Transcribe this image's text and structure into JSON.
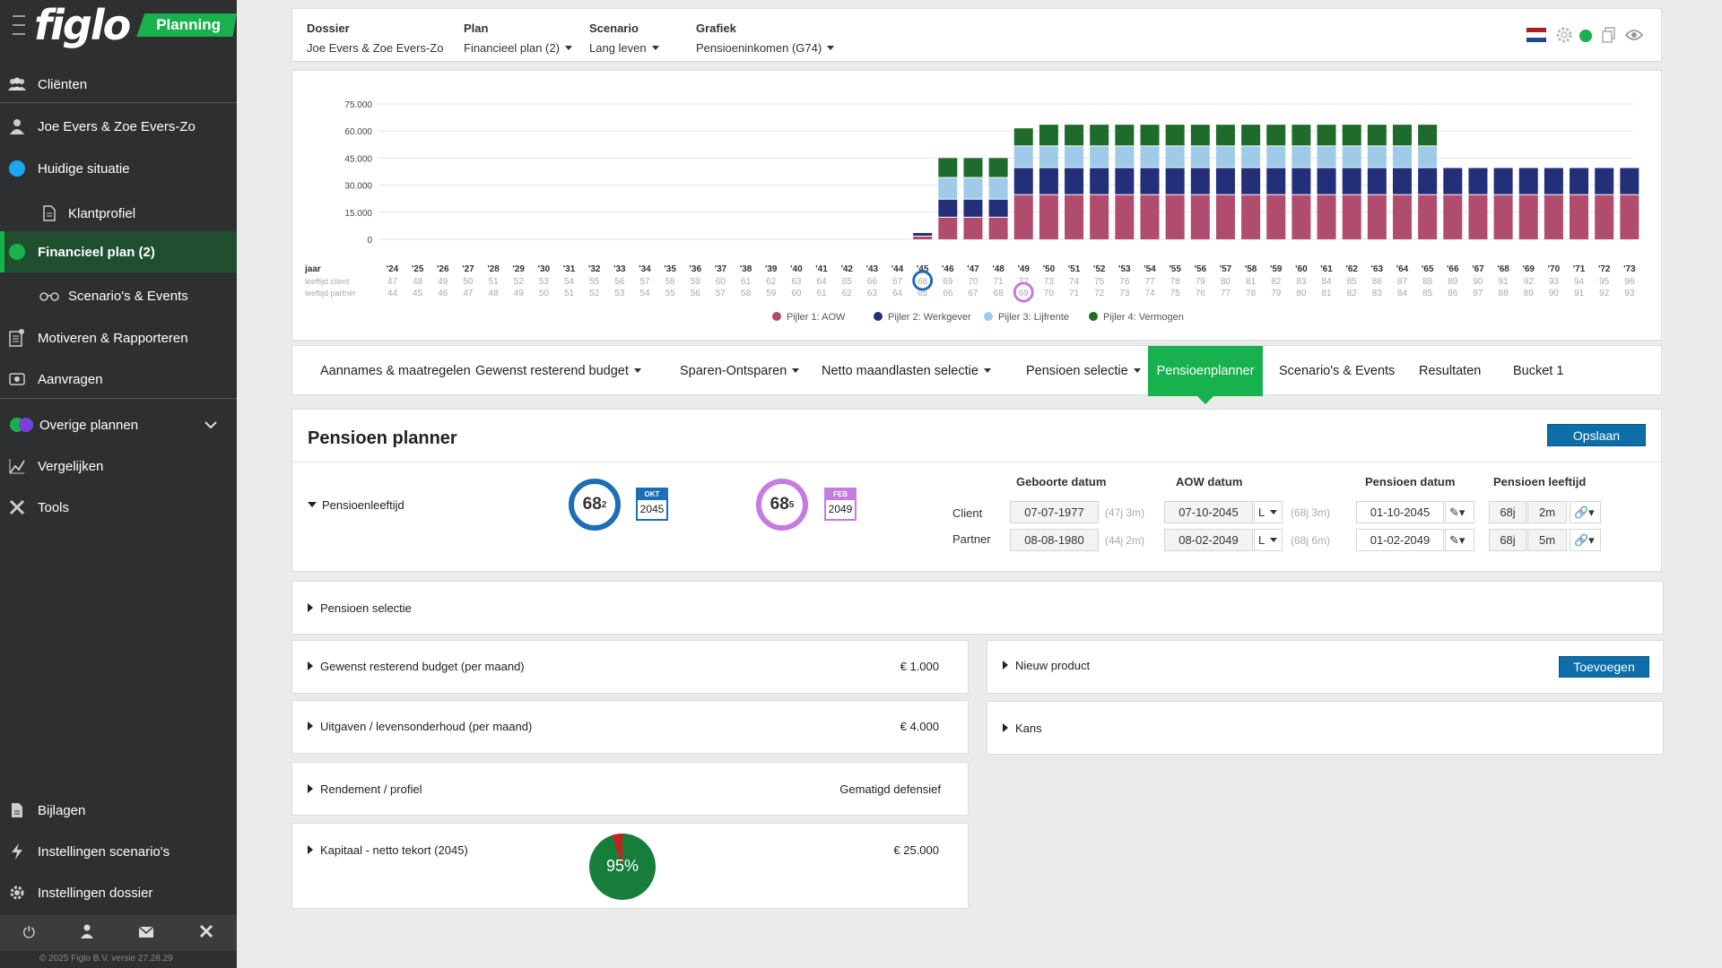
{
  "app": {
    "logo": "figlo",
    "badge": "Planning",
    "version": "© 2025 Figlo B.V. versie 27.28.29"
  },
  "sidebar": {
    "items": [
      {
        "label": "Cliënten",
        "icon": "users-icon"
      },
      {
        "label": "Joe Evers & Zoe Evers-Zo",
        "icon": "user-icon"
      },
      {
        "label": "Huidige situatie",
        "icon": "blue-dot-icon"
      },
      {
        "label": "Klantprofiel",
        "icon": "document-icon"
      },
      {
        "label": "Financieel plan (2)",
        "icon": "green-dot-icon"
      },
      {
        "label": "Scenario's & Events",
        "icon": "glasses-icon"
      },
      {
        "label": "Motiveren & Rapporteren",
        "icon": "report-icon"
      },
      {
        "label": "Aanvragen",
        "icon": "request-icon"
      },
      {
        "label": "Overige plannen",
        "icon": "multi-dot-icon"
      },
      {
        "label": "Vergelijken",
        "icon": "compare-icon"
      },
      {
        "label": "Tools",
        "icon": "tools-icon"
      },
      {
        "label": "Bijlagen",
        "icon": "attachment-icon"
      },
      {
        "label": "Instellingen scenario's",
        "icon": "lightning-icon"
      },
      {
        "label": "Instellingen dossier",
        "icon": "gear-icon"
      }
    ]
  },
  "topbar": {
    "dossier_label": "Dossier",
    "dossier_value": "Joe Evers & Zoe Evers-Zo",
    "plan_label": "Plan",
    "plan_value": "Financieel plan (2)",
    "scenario_label": "Scenario",
    "scenario_value": "Lang leven",
    "grafiek_label": "Grafiek",
    "grafiek_value": "Pensioeninkomen (G74)"
  },
  "chart_data": {
    "type": "bar",
    "stacked": true,
    "ylim": [
      0,
      75000
    ],
    "yticks": [
      "75.000",
      "60.000",
      "45.000",
      "30.000",
      "15.000",
      "0"
    ],
    "categories": [
      "'24",
      "'25",
      "'26",
      "'27",
      "'28",
      "'29",
      "'30",
      "'31",
      "'32",
      "'33",
      "'34",
      "'35",
      "'36",
      "'37",
      "'38",
      "'39",
      "'40",
      "'41",
      "'42",
      "'43",
      "'44",
      "'45",
      "'46",
      "'47",
      "'48",
      "'49",
      "'50",
      "'51",
      "'52",
      "'53",
      "'54",
      "'55",
      "'56",
      "'57",
      "'58",
      "'59",
      "'60",
      "'61",
      "'62",
      "'63",
      "'64",
      "'65",
      "'66",
      "'67",
      "'68",
      "'69",
      "'70",
      "'71",
      "'72",
      "'73"
    ],
    "row_labels": [
      "jaar",
      "leeftijd client",
      "leeftijd partner"
    ],
    "age_client": [
      47,
      48,
      49,
      50,
      51,
      52,
      53,
      54,
      55,
      56,
      57,
      58,
      59,
      60,
      61,
      62,
      63,
      64,
      65,
      66,
      67,
      68,
      69,
      70,
      71,
      72,
      73,
      74,
      75,
      76,
      77,
      78,
      79,
      80,
      81,
      82,
      83,
      84,
      85,
      86,
      87,
      88,
      89,
      90,
      91,
      92,
      93,
      94,
      95,
      96
    ],
    "age_partner": [
      44,
      45,
      46,
      47,
      48,
      49,
      50,
      51,
      52,
      53,
      54,
      55,
      56,
      57,
      58,
      59,
      60,
      61,
      62,
      63,
      64,
      65,
      66,
      67,
      68,
      69,
      70,
      71,
      72,
      73,
      74,
      75,
      76,
      77,
      78,
      79,
      80,
      81,
      82,
      83,
      84,
      85,
      86,
      87,
      88,
      89,
      90,
      91,
      92,
      93
    ],
    "highlight_client_index": 21,
    "highlight_partner_index": 25,
    "series": [
      {
        "name": "Pijler 1: AOW",
        "color": "#b04c6e",
        "values": [
          0,
          0,
          0,
          0,
          0,
          0,
          0,
          0,
          0,
          0,
          0,
          0,
          0,
          0,
          0,
          0,
          0,
          0,
          0,
          0,
          0,
          2000,
          12500,
          12500,
          12500,
          25000,
          25000,
          25000,
          25000,
          25000,
          25000,
          25000,
          25000,
          25000,
          25000,
          25000,
          25000,
          25000,
          25000,
          25000,
          25000,
          25000,
          25000,
          25000,
          25000,
          25000,
          25000,
          25000,
          25000,
          25000
        ]
      },
      {
        "name": "Pijler 2: Werkgever",
        "color": "#232f78",
        "values": [
          0,
          0,
          0,
          0,
          0,
          0,
          0,
          0,
          0,
          0,
          0,
          0,
          0,
          0,
          0,
          0,
          0,
          0,
          0,
          0,
          0,
          2000,
          10000,
          10000,
          10000,
          15000,
          15000,
          15000,
          15000,
          15000,
          15000,
          15000,
          15000,
          15000,
          15000,
          15000,
          15000,
          15000,
          15000,
          15000,
          15000,
          15000,
          15000,
          15000,
          15000,
          15000,
          15000,
          15000,
          15000,
          15000
        ]
      },
      {
        "name": "Pijler 3: Lijfrente",
        "color": "#9fcbe8",
        "values": [
          0,
          0,
          0,
          0,
          0,
          0,
          0,
          0,
          0,
          0,
          0,
          0,
          0,
          0,
          0,
          0,
          0,
          0,
          0,
          0,
          0,
          0,
          12000,
          12000,
          12000,
          12000,
          12000,
          12000,
          12000,
          12000,
          12000,
          12000,
          12000,
          12000,
          12000,
          12000,
          12000,
          12000,
          12000,
          12000,
          12000,
          12000,
          0,
          0,
          0,
          0,
          0,
          0,
          0,
          0
        ]
      },
      {
        "name": "Pijler 4: Vermogen",
        "color": "#1f6b2b",
        "values": [
          0,
          0,
          0,
          0,
          0,
          0,
          0,
          0,
          0,
          0,
          0,
          0,
          0,
          0,
          0,
          0,
          0,
          0,
          0,
          0,
          0,
          0,
          11000,
          11000,
          11000,
          10000,
          12000,
          12000,
          12000,
          12000,
          12000,
          12000,
          12000,
          12000,
          12000,
          12000,
          12000,
          12000,
          12000,
          12000,
          12000,
          12000,
          0,
          0,
          0,
          0,
          0,
          0,
          0,
          0
        ]
      }
    ],
    "legend_position": "bottom"
  },
  "tabs": [
    {
      "label": "Aannames & maatregelen",
      "dropdown": false
    },
    {
      "label": "Gewenst resterend budget",
      "dropdown": true
    },
    {
      "label": "Sparen-Ontsparen",
      "dropdown": true
    },
    {
      "label": "Netto maandlasten selectie",
      "dropdown": true
    },
    {
      "label": "Pensioen selectie",
      "dropdown": true
    },
    {
      "label": "Pensioenplanner",
      "dropdown": false,
      "active": true
    },
    {
      "label": "Scenario's & Events",
      "dropdown": false
    },
    {
      "label": "Resultaten",
      "dropdown": false
    },
    {
      "label": "Bucket 1",
      "dropdown": false
    }
  ],
  "planner": {
    "title": "Pensioen planner",
    "save_label": "Opslaan",
    "section_label": "Pensioenleeftijd",
    "client_age": "68",
    "client_age_sup": "2",
    "client_month": "OKT",
    "client_year": "2045",
    "partner_age": "68",
    "partner_age_sup": "5",
    "partner_month": "FEB",
    "partner_year": "2049",
    "headers": {
      "geboorte": "Geboorte datum",
      "aow": "AOW datum",
      "pensioen": "Pensioen datum",
      "leeftijd": "Pensioen leeftijd"
    },
    "rows": [
      {
        "label": "Client",
        "birth": "07-07-1977",
        "birth_age": "(47j 3m)",
        "aow": "07-10-2045",
        "aow_type": "L",
        "aow_age": "(68j 3m)",
        "pension": "01-10-2045",
        "years": "68j",
        "months": "2m"
      },
      {
        "label": "Partner",
        "birth": "08-08-1980",
        "birth_age": "(44j 2m)",
        "aow": "08-02-2049",
        "aow_type": "L",
        "aow_age": "(68j 6m)",
        "pension": "01-02-2049",
        "years": "68j",
        "months": "5m"
      }
    ]
  },
  "sections": {
    "pensioen_selectie": "Pensioen selectie",
    "budget": {
      "label": "Gewenst resterend budget (per maand)",
      "value": "€ 1.000"
    },
    "uitgaven": {
      "label": "Uitgaven / levensonderhoud (per maand)",
      "value": "€ 4.000"
    },
    "rendement": {
      "label": "Rendement / profiel",
      "value": "Gematigd defensief"
    },
    "kapitaal": {
      "label": "Kapitaal - netto tekort (2045)",
      "value": "€ 25.000",
      "pie_label": "95%",
      "pie_fraction": 0.95
    },
    "nieuw_product": {
      "label": "Nieuw product",
      "button": "Toevoegen"
    },
    "kans": {
      "label": "Kans"
    }
  },
  "colors": {
    "accent_green": "#17b14d",
    "primary_blue": "#0d6ea8",
    "client_ring": "#1b6fb8",
    "partner_ring": "#c77ae0"
  }
}
